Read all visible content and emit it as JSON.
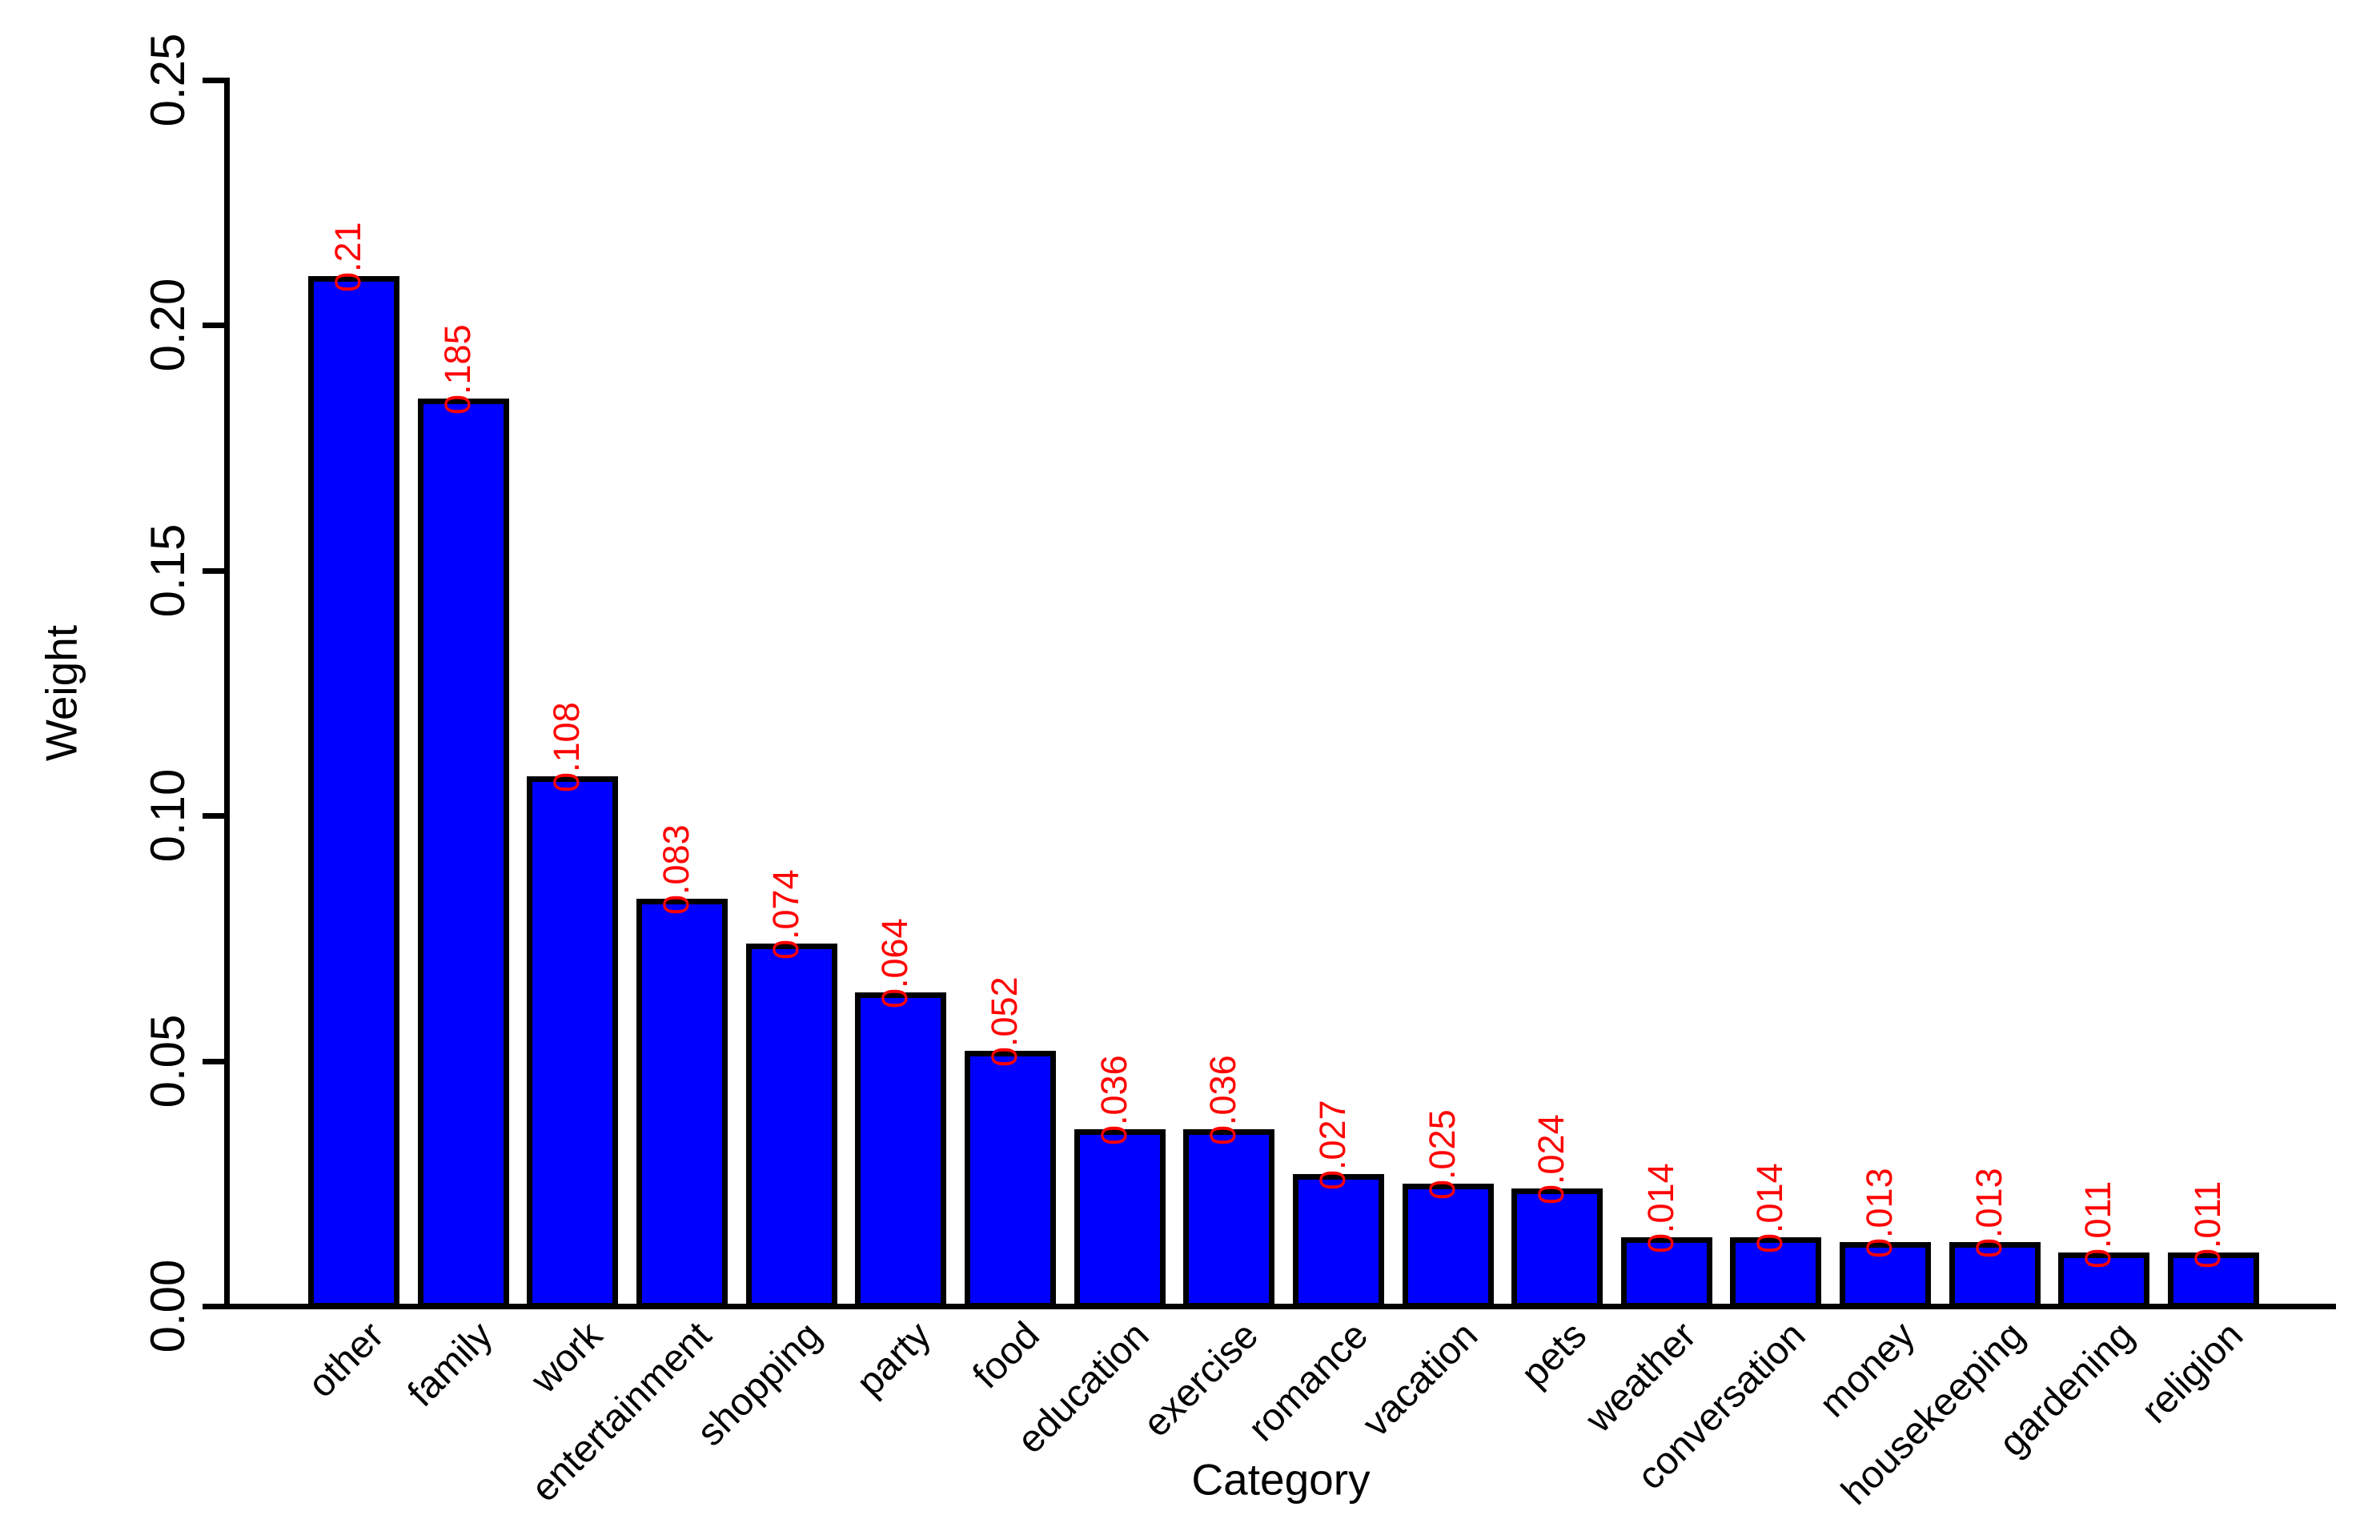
{
  "chart_data": {
    "type": "bar",
    "title": "",
    "xlabel": "Category",
    "ylabel": "Weight",
    "categories": [
      "other",
      "family",
      "work",
      "entertainment",
      "shopping",
      "party",
      "food",
      "education",
      "exercise",
      "romance",
      "vacation",
      "pets",
      "weather",
      "conversation",
      "money",
      "housekeeping",
      "gardening",
      "religion"
    ],
    "values": [
      0.21,
      0.185,
      0.108,
      0.083,
      0.074,
      0.064,
      0.052,
      0.036,
      0.036,
      0.027,
      0.025,
      0.024,
      0.014,
      0.014,
      0.013,
      0.013,
      0.011,
      0.011
    ],
    "bar_value_labels": [
      "0.21",
      "0.185",
      "0.108",
      "0.083",
      "0.074",
      "0.064",
      "0.052",
      "0.036",
      "0.036",
      "0.027",
      "0.025",
      "0.024",
      "0.014",
      "0.014",
      "0.013",
      "0.013",
      "0.011",
      "0.011"
    ],
    "ytick_values": [
      0,
      0.05,
      0.1,
      0.15,
      0.2,
      0.25
    ],
    "ytick_labels": [
      "0.00",
      "0.05",
      "0.10",
      "0.15",
      "0.20",
      "0.25"
    ],
    "ylim": [
      0,
      0.25
    ],
    "grid": false,
    "legend": null,
    "colors": {
      "bar_fill": "#0000FF",
      "bar_border": "#000000",
      "value_label": "#FF0000",
      "axis": "#000000",
      "background": "#FFFFFF"
    }
  }
}
